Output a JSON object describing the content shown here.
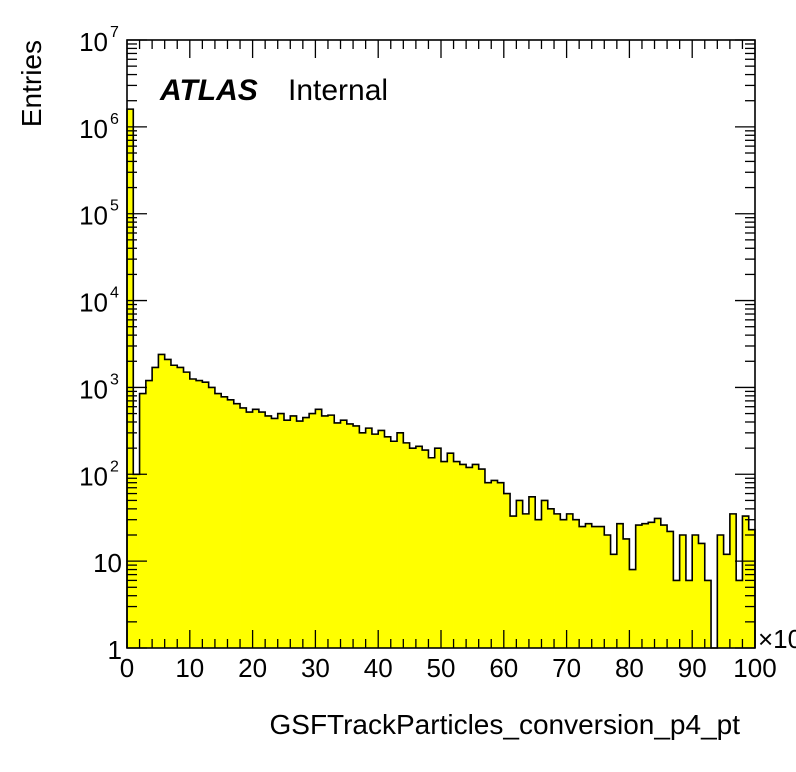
{
  "chart_data": {
    "type": "bar",
    "style": "histogram",
    "title": "",
    "xlabel": "GSFTrackParticles_conversion_p4_pt",
    "ylabel": "Entries",
    "x_multiplier_label": "×10",
    "xlim": [
      0,
      100
    ],
    "ylim": [
      1,
      10000000
    ],
    "y_scale": "log",
    "grid": false,
    "fill_color": "#ffff00",
    "line_color": "#000000",
    "bin_width": 1,
    "x_ticks": [
      "0",
      "10",
      "20",
      "30",
      "40",
      "50",
      "60",
      "70",
      "80",
      "90",
      "100"
    ],
    "y_tick_labels": [
      {
        "value": 1,
        "base": "1",
        "exp": ""
      },
      {
        "value": 10,
        "base": "10",
        "exp": ""
      },
      {
        "value": 100,
        "base": "10",
        "exp": "2"
      },
      {
        "value": 1000,
        "base": "10",
        "exp": "3"
      },
      {
        "value": 10000,
        "base": "10",
        "exp": "4"
      },
      {
        "value": 100000,
        "base": "10",
        "exp": "5"
      },
      {
        "value": 1000000,
        "base": "10",
        "exp": "6"
      },
      {
        "value": 10000000,
        "base": "10",
        "exp": "7"
      }
    ],
    "annotation": {
      "bold": "ATLAS",
      "normal": "Internal"
    },
    "values": [
      1600000,
      100,
      850,
      1200,
      1700,
      2400,
      2100,
      1800,
      1700,
      1500,
      1250,
      1200,
      1150,
      1000,
      850,
      780,
      720,
      650,
      580,
      520,
      560,
      520,
      470,
      440,
      500,
      420,
      470,
      410,
      450,
      500,
      560,
      470,
      480,
      390,
      420,
      380,
      360,
      300,
      340,
      290,
      320,
      270,
      240,
      300,
      230,
      200,
      210,
      190,
      155,
      200,
      140,
      175,
      140,
      130,
      120,
      130,
      115,
      80,
      85,
      80,
      60,
      33,
      50,
      35,
      55,
      30,
      50,
      40,
      35,
      30,
      35,
      30,
      25,
      27,
      25,
      25,
      20,
      12,
      27,
      18,
      8,
      26,
      27,
      28,
      31,
      26,
      22,
      6,
      20,
      6,
      20,
      16,
      6,
      0,
      20,
      12,
      35,
      6,
      33,
      23
    ]
  }
}
